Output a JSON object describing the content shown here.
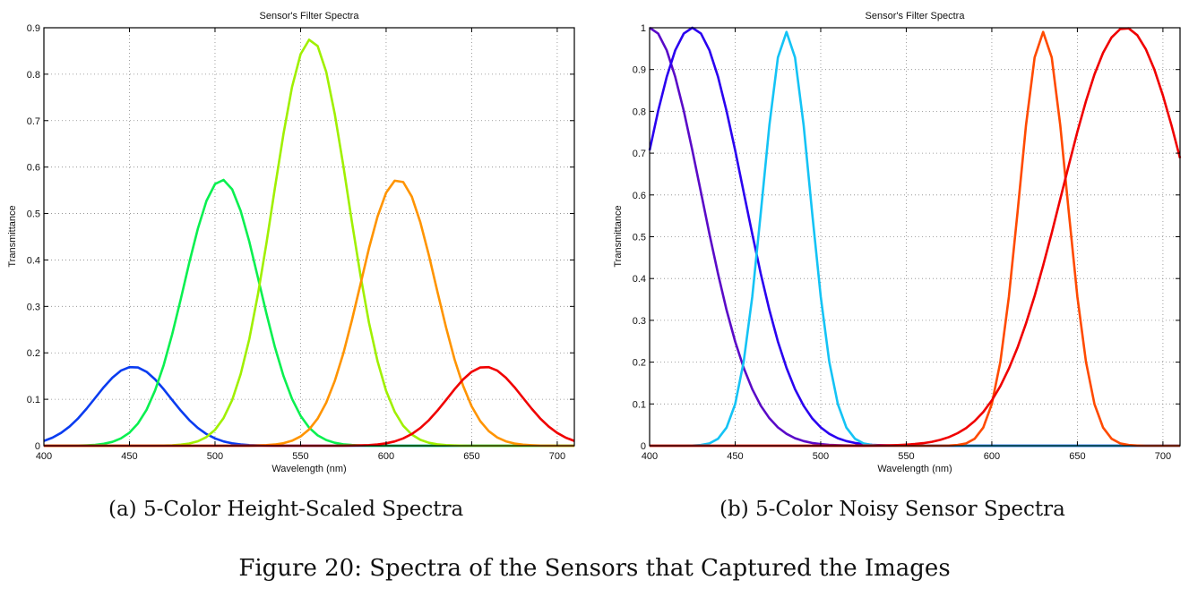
{
  "figure_caption": "Figure 20: Spectra of the Sensors that Captured the Images",
  "chart_data": [
    {
      "type": "line",
      "panel_caption": "(a) 5-Color Height-Scaled Spectra",
      "title": "Sensor's Filter Spectra",
      "xlabel": "Wavelength (nm)",
      "ylabel": "Transmittance",
      "xlim": [
        400,
        710
      ],
      "ylim": [
        0,
        0.9
      ],
      "xticks": [
        "400",
        "450",
        "500",
        "550",
        "600",
        "650",
        "700"
      ],
      "xtick_values": [
        400,
        450,
        500,
        550,
        600,
        650,
        700
      ],
      "yticks": [
        "0",
        "0.1",
        "0.2",
        "0.3",
        "0.4",
        "0.5",
        "0.6",
        "0.7",
        "0.8",
        "0.9"
      ],
      "ytick_values": [
        0,
        0.1,
        0.2,
        0.3,
        0.4,
        0.5,
        0.6,
        0.7,
        0.8,
        0.9
      ],
      "grid": true,
      "series": [
        {
          "name": "blue filter",
          "color": "#0a3cf0",
          "peak_nm": 452,
          "peak_value": 0.17,
          "width_nm": 22
        },
        {
          "name": "green filter",
          "color": "#0af050",
          "peak_nm": 504,
          "peak_value": 0.573,
          "width_nm": 22
        },
        {
          "name": "yellow-green filter",
          "color": "#a0f000",
          "peak_nm": 556,
          "peak_value": 0.875,
          "width_nm": 22
        },
        {
          "name": "orange filter",
          "color": "#ff9400",
          "peak_nm": 607,
          "peak_value": 0.573,
          "width_nm": 22
        },
        {
          "name": "red filter",
          "color": "#f00000",
          "peak_nm": 658,
          "peak_value": 0.17,
          "width_nm": 22
        }
      ]
    },
    {
      "type": "line",
      "panel_caption": "(b) 5-Color Noisy Sensor Spectra",
      "title": "Sensor's Filter Spectra",
      "xlabel": "Wavelength (nm)",
      "ylabel": "Transmittance",
      "xlim": [
        400,
        710
      ],
      "ylim": [
        0,
        1
      ],
      "xticks": [
        "400",
        "450",
        "500",
        "550",
        "600",
        "650",
        "700"
      ],
      "xtick_values": [
        400,
        450,
        500,
        550,
        600,
        650,
        700
      ],
      "yticks": [
        "0",
        "0.1",
        "0.2",
        "0.3",
        "0.4",
        "0.5",
        "0.6",
        "0.7",
        "0.8",
        "0.9",
        "1"
      ],
      "ytick_values": [
        0,
        0.1,
        0.2,
        0.3,
        0.4,
        0.5,
        0.6,
        0.7,
        0.8,
        0.9,
        1
      ],
      "grid": true,
      "series": [
        {
          "name": "violet filter",
          "color": "#5a0ac8",
          "peak_nm": 400,
          "peak_value": 1.0,
          "width_nm": 30
        },
        {
          "name": "blue filter",
          "color": "#2a00f0",
          "peak_nm": 425,
          "peak_value": 1.0,
          "width_nm": 30
        },
        {
          "name": "cyan filter",
          "color": "#14c3f5",
          "peak_nm": 480,
          "peak_value": 0.99,
          "width_nm": 14
        },
        {
          "name": "orange-red filter",
          "color": "#ff4a00",
          "peak_nm": 630,
          "peak_value": 0.99,
          "width_nm": 14
        },
        {
          "name": "red filter",
          "color": "#f00000",
          "peak_nm": 678,
          "peak_value": 1.0,
          "width_nm": 37
        }
      ]
    }
  ]
}
